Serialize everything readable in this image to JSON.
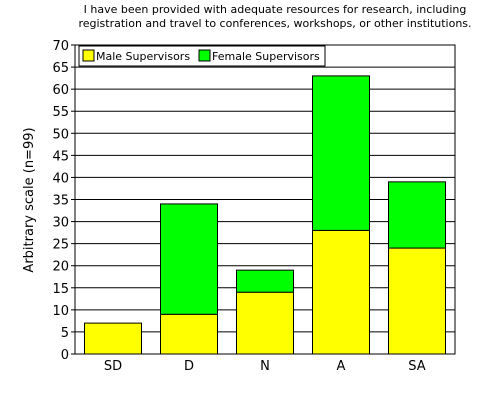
{
  "chart_data": {
    "type": "bar",
    "stacked": true,
    "title_lines": [
      "I have been provided with adequate resources for research, including",
      "registration and travel to conferences, workshops, or other institutions."
    ],
    "ylabel": "Arbitrary scale (n=99)",
    "xlabel": "",
    "categories": [
      "SD",
      "D",
      "N",
      "A",
      "SA"
    ],
    "series": [
      {
        "name": "Male Supervisors",
        "color": "#ffff00",
        "values": [
          7,
          9,
          14,
          28,
          24
        ]
      },
      {
        "name": "Female Supervisors",
        "color": "#00ff00",
        "values": [
          0,
          25,
          5,
          35,
          15
        ]
      }
    ],
    "ylim": [
      0,
      70
    ],
    "yticks": [
      0,
      5,
      10,
      15,
      20,
      25,
      30,
      35,
      40,
      45,
      50,
      55,
      60,
      65,
      70
    ],
    "grid": true,
    "legend_position": "top-left"
  }
}
